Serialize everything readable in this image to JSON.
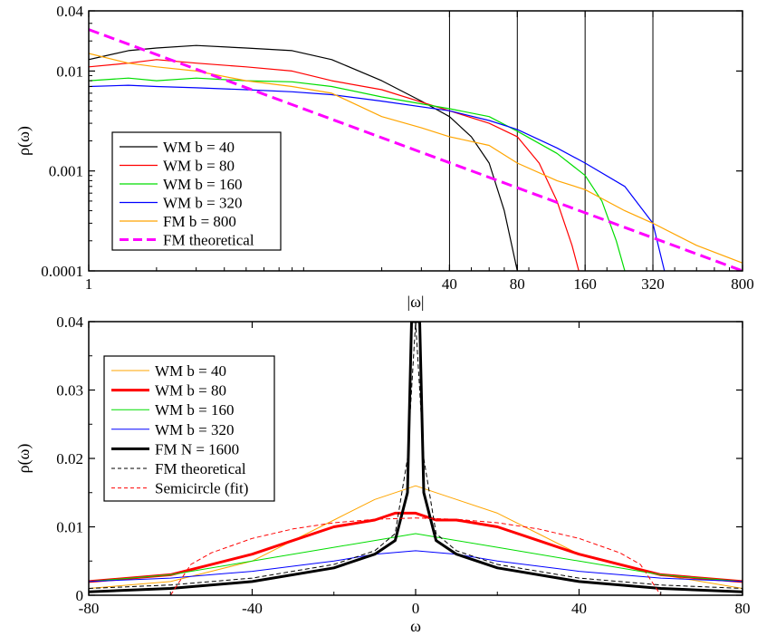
{
  "chart_data": [
    {
      "type": "line",
      "xscale": "log",
      "yscale": "log",
      "xlabel": "|ω|",
      "ylabel": "ρ(ω)",
      "xlim": [
        1,
        800
      ],
      "ylim": [
        0.0001,
        0.04
      ],
      "xticks": [
        1,
        40,
        80,
        160,
        320,
        800
      ],
      "yticks": [
        0.0001,
        0.001,
        0.01,
        0.04
      ],
      "ytick_labels": [
        "0.0001",
        "0.001",
        "0.01",
        "0.04"
      ],
      "vertical_lines": [
        40,
        80,
        160,
        320
      ],
      "legend_position": "middle-left",
      "series": [
        {
          "name": "WM b = 40",
          "color": "#000000",
          "style": "solid",
          "x": [
            1,
            1.5,
            2,
            3,
            5,
            8,
            12,
            20,
            30,
            40,
            50,
            60,
            70,
            80
          ],
          "y": [
            0.013,
            0.016,
            0.017,
            0.018,
            0.017,
            0.016,
            0.013,
            0.008,
            0.005,
            0.0035,
            0.0022,
            0.0012,
            0.0004,
            0.0001
          ]
        },
        {
          "name": "WM b = 80",
          "color": "#ff0000",
          "style": "solid",
          "x": [
            1,
            1.5,
            2,
            3,
            5,
            8,
            12,
            20,
            40,
            60,
            80,
            100,
            120,
            140,
            150
          ],
          "y": [
            0.011,
            0.012,
            0.013,
            0.012,
            0.011,
            0.01,
            0.008,
            0.0065,
            0.004,
            0.003,
            0.0022,
            0.0012,
            0.0005,
            0.00018,
            0.0001
          ]
        },
        {
          "name": "WM b = 160",
          "color": "#00dd00",
          "style": "solid",
          "x": [
            1,
            1.5,
            2,
            3,
            5,
            8,
            12,
            20,
            40,
            60,
            80,
            120,
            160,
            190,
            220,
            240
          ],
          "y": [
            0.008,
            0.0085,
            0.008,
            0.0085,
            0.008,
            0.0078,
            0.007,
            0.0055,
            0.0042,
            0.0035,
            0.0025,
            0.0015,
            0.0009,
            0.0005,
            0.0002,
            0.0001
          ]
        },
        {
          "name": "WM b = 320",
          "color": "#0000ff",
          "style": "solid",
          "x": [
            1,
            1.5,
            2,
            3,
            5,
            8,
            12,
            20,
            40,
            60,
            80,
            120,
            160,
            240,
            320,
            360
          ],
          "y": [
            0.007,
            0.0072,
            0.007,
            0.0068,
            0.0065,
            0.0062,
            0.0058,
            0.005,
            0.004,
            0.0032,
            0.0026,
            0.0017,
            0.0012,
            0.0007,
            0.0003,
            0.0001
          ]
        },
        {
          "name": "FM b = 800",
          "color": "#ffa500",
          "style": "solid",
          "x": [
            1,
            1.5,
            2,
            3,
            5,
            8,
            12,
            20,
            30,
            40,
            60,
            80,
            120,
            160,
            240,
            320,
            500,
            800
          ],
          "y": [
            0.015,
            0.012,
            0.011,
            0.01,
            0.008,
            0.007,
            0.006,
            0.0035,
            0.0027,
            0.0022,
            0.0018,
            0.0012,
            0.0008,
            0.00065,
            0.0004,
            0.0003,
            0.00018,
            0.00012
          ]
        },
        {
          "name": "FM theoretical",
          "color": "#ff00ff",
          "style": "dashed",
          "x": [
            1,
            800
          ],
          "y": [
            0.026,
            0.0001
          ]
        }
      ]
    },
    {
      "type": "line",
      "xlabel": "ω",
      "ylabel": "ρ(ω)",
      "xlim": [
        -80,
        80
      ],
      "ylim": [
        0,
        0.04
      ],
      "xticks": [
        -80,
        -40,
        0,
        40,
        80
      ],
      "yticks": [
        0,
        0.01,
        0.02,
        0.03,
        0.04
      ],
      "ytick_labels": [
        "0",
        "0.01",
        "0.02",
        "0.03",
        "0.04"
      ],
      "legend_position": "top-left",
      "series": [
        {
          "name": "WM b = 40",
          "color": "#ffa500",
          "style": "solid",
          "width": 1,
          "x": [
            -80,
            -60,
            -40,
            -30,
            -20,
            -10,
            -5,
            0,
            5,
            10,
            20,
            30,
            40,
            60,
            80
          ],
          "y": [
            0.001,
            0.002,
            0.005,
            0.008,
            0.011,
            0.014,
            0.015,
            0.016,
            0.015,
            0.014,
            0.012,
            0.009,
            0.006,
            0.003,
            0.001
          ]
        },
        {
          "name": "WM b = 80",
          "color": "#ff0000",
          "style": "solid",
          "width": 3,
          "x": [
            -80,
            -60,
            -40,
            -30,
            -20,
            -10,
            -5,
            0,
            5,
            10,
            20,
            30,
            40,
            60,
            80
          ],
          "y": [
            0.002,
            0.003,
            0.006,
            0.008,
            0.01,
            0.011,
            0.012,
            0.012,
            0.011,
            0.011,
            0.01,
            0.008,
            0.006,
            0.003,
            0.002
          ]
        },
        {
          "name": "WM b = 160",
          "color": "#00dd00",
          "style": "solid",
          "width": 1,
          "x": [
            -80,
            -60,
            -40,
            -20,
            -10,
            0,
            10,
            20,
            40,
            60,
            80
          ],
          "y": [
            0.002,
            0.003,
            0.005,
            0.007,
            0.008,
            0.009,
            0.008,
            0.007,
            0.005,
            0.003,
            0.002
          ]
        },
        {
          "name": "WM b = 320",
          "color": "#0000ff",
          "style": "solid",
          "width": 1,
          "x": [
            -80,
            -60,
            -40,
            -20,
            -10,
            0,
            10,
            20,
            40,
            60,
            80
          ],
          "y": [
            0.002,
            0.0025,
            0.0035,
            0.005,
            0.006,
            0.0065,
            0.006,
            0.005,
            0.0035,
            0.0025,
            0.002
          ]
        },
        {
          "name": "FM N = 1600",
          "color": "#000000",
          "style": "solid",
          "width": 3,
          "x": [
            -80,
            -60,
            -40,
            -20,
            -10,
            -5,
            -2,
            -1,
            0,
            1,
            2,
            5,
            10,
            20,
            40,
            60,
            80
          ],
          "y": [
            0.0005,
            0.001,
            0.002,
            0.004,
            0.006,
            0.008,
            0.015,
            0.04,
            0.04,
            0.04,
            0.015,
            0.008,
            0.006,
            0.004,
            0.002,
            0.001,
            0.0005
          ]
        },
        {
          "name": "FM theoretical",
          "color": "#000000",
          "style": "dashed",
          "width": 1,
          "x": [
            -80,
            -60,
            -40,
            -20,
            -10,
            -5,
            -2,
            0,
            2,
            5,
            10,
            20,
            40,
            60,
            80
          ],
          "y": [
            0.001,
            0.0015,
            0.0025,
            0.0045,
            0.0065,
            0.009,
            0.02,
            0.04,
            0.02,
            0.009,
            0.0065,
            0.0045,
            0.0025,
            0.0015,
            0.001
          ]
        },
        {
          "name": "Semicircle (fit)",
          "color": "#ff0000",
          "style": "dashed",
          "width": 1,
          "x": [
            -60,
            -55,
            -50,
            -40,
            -30,
            -20,
            -10,
            0,
            10,
            20,
            30,
            40,
            50,
            55,
            60
          ],
          "y": [
            0,
            0.0045,
            0.0062,
            0.0083,
            0.0097,
            0.0106,
            0.0111,
            0.0113,
            0.0111,
            0.0106,
            0.0097,
            0.0083,
            0.0062,
            0.0045,
            0
          ]
        }
      ]
    }
  ]
}
